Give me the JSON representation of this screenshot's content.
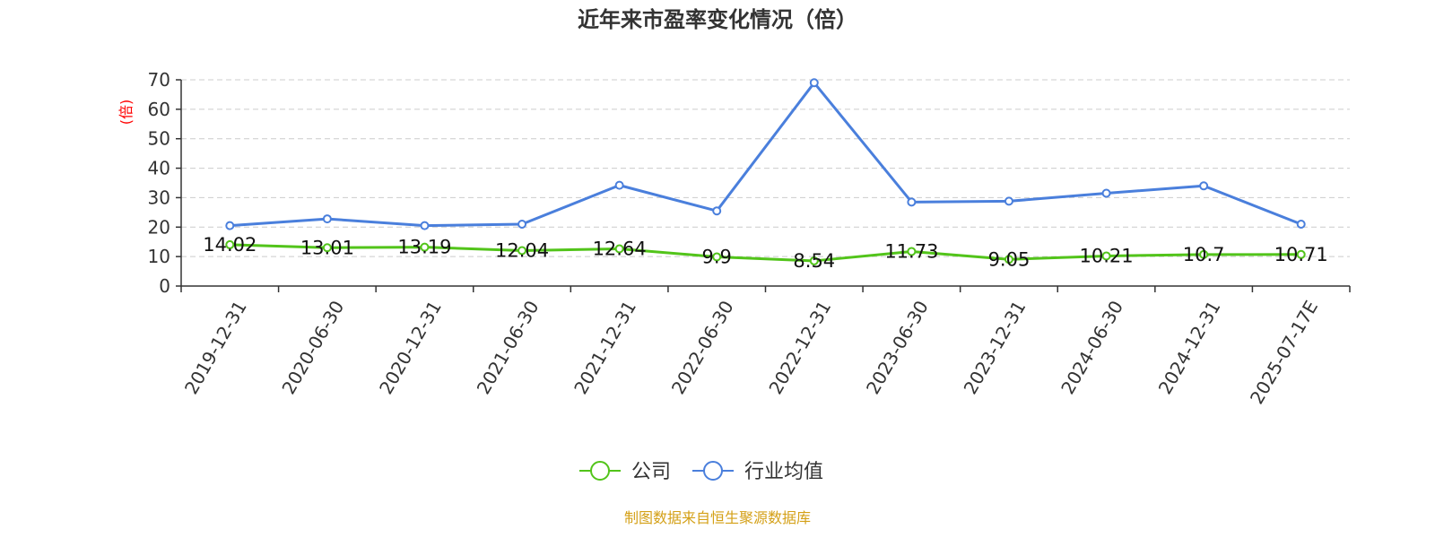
{
  "chart_data": {
    "type": "line",
    "title": "近年来市盈率变化情况（倍）",
    "ylabel": "(倍)",
    "source": "制图数据来自恒生聚源数据库",
    "ylim": [
      0,
      70
    ],
    "yticks": [
      0,
      10,
      20,
      30,
      40,
      50,
      60,
      70
    ],
    "grid": true,
    "legend_position": "bottom",
    "categories": [
      "2019-12-31",
      "2020-06-30",
      "2020-12-31",
      "2021-06-30",
      "2021-12-31",
      "2022-06-30",
      "2022-12-31",
      "2023-06-30",
      "2023-12-31",
      "2024-06-30",
      "2024-12-31",
      "2025-07-17E"
    ],
    "series": [
      {
        "name": "公司",
        "color": "#52c41a",
        "show_labels": true,
        "values": [
          14.02,
          13.01,
          13.19,
          12.04,
          12.64,
          9.9,
          8.54,
          11.73,
          9.05,
          10.21,
          10.7,
          10.71
        ]
      },
      {
        "name": "行业均值",
        "color": "#4a7fdc",
        "show_labels": false,
        "values": [
          20.5,
          22.8,
          20.5,
          21.0,
          34.2,
          25.5,
          69.0,
          28.5,
          28.8,
          31.5,
          34.0,
          21.0
        ]
      }
    ],
    "colors": {
      "axis": "#333333",
      "grid": "#cccccc",
      "ylabel": "#ff0000",
      "source": "#d4a017",
      "title": "#333333"
    }
  }
}
